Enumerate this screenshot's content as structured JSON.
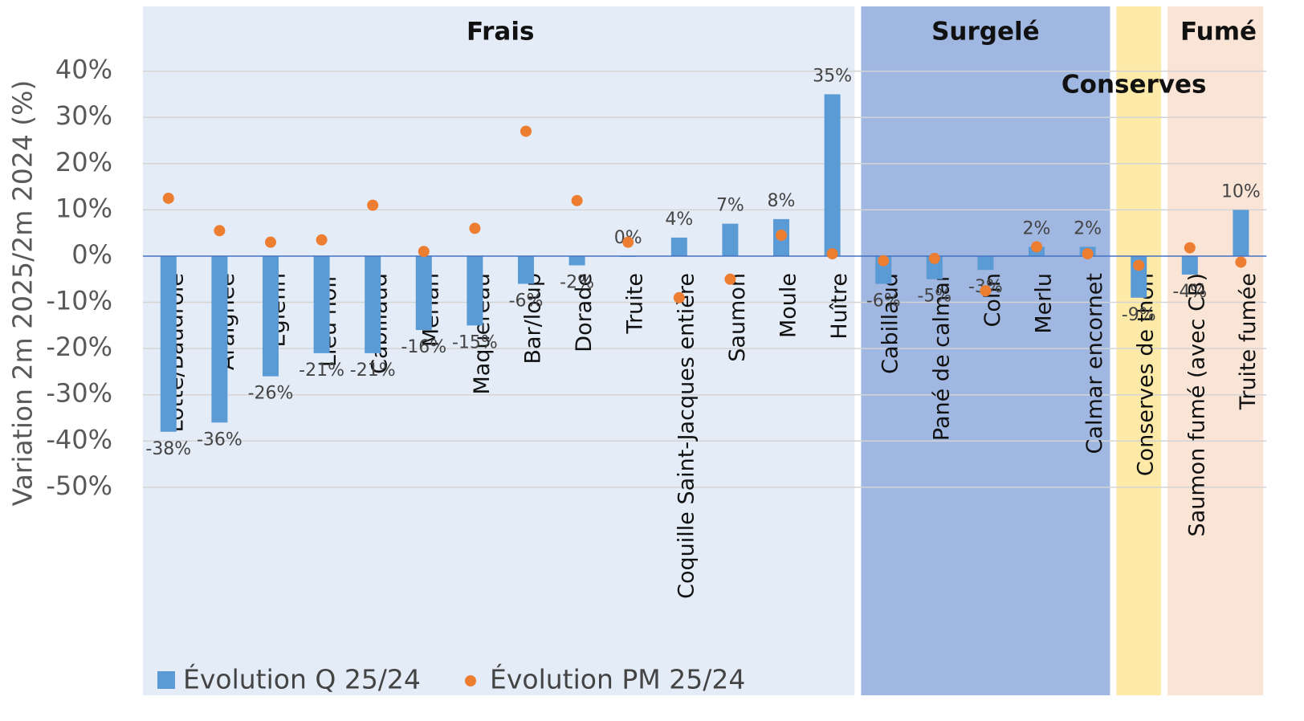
{
  "chart_data": {
    "type": "bar",
    "y_label": "Variation 2m 2025/2m 2024 (%)",
    "categories": [
      "Lotte/Baudroie",
      "Araignée",
      "Églefin",
      "Lieu noir",
      "Cabillaud",
      "Merlan",
      "Maquereau",
      "Bar/loup",
      "Dorade",
      "Truite",
      "Coquille Saint-Jacques entière",
      "Saumon",
      "Moule",
      "Huître",
      "Cabillaud",
      "Pané de calmar",
      "Colin",
      "Merlu",
      "Calmar encornet",
      "Conserves de thon",
      "Saumon fumé (avec CB)",
      "Truite fumée"
    ],
    "groups": [
      {
        "name": "Frais",
        "start": 0,
        "end": 13,
        "color": "#e3ecf7"
      },
      {
        "name": "Surgelé",
        "start": 14,
        "end": 18,
        "color": "#a0b7e1"
      },
      {
        "name": "Conserves",
        "start": 19,
        "end": 19,
        "color": "#fdeaa8"
      },
      {
        "name": "Fumé",
        "start": 20,
        "end": 21,
        "color": "#f9e4d6"
      }
    ],
    "series": [
      {
        "name": "Évolution Q 25/24",
        "color": "#5b9bd5",
        "kind": "bar",
        "values": [
          -38,
          -36,
          -26,
          -21,
          -21,
          -16,
          -15,
          -6,
          -2,
          0,
          4,
          7,
          8,
          35,
          -6,
          -5,
          -3,
          2,
          2,
          -9,
          -4,
          10
        ],
        "value_labels": [
          "-38%",
          "-36%",
          "-26%",
          "-21%",
          "-21%",
          "-16%",
          "-15%",
          "-6%",
          "-2%",
          "0%",
          "4%",
          "7%",
          "8%",
          "35%",
          "-6%",
          "-5%",
          "-3%",
          "2%",
          "2%",
          "-9%",
          "-4%",
          "10%"
        ]
      },
      {
        "name": "Évolution PM 25/24",
        "color": "#ed7d31",
        "kind": "dot",
        "values": [
          12.5,
          5.5,
          3,
          3.5,
          11,
          1,
          6,
          27,
          12,
          3,
          -9,
          -5,
          4.5,
          0.5,
          -1,
          -0.5,
          -7.5,
          2,
          0.5,
          -2,
          1.8,
          -1.3
        ]
      }
    ],
    "ylim": [
      -95,
      54
    ],
    "yticks": [
      {
        "value": 40,
        "label": "40%"
      },
      {
        "value": 30,
        "label": "30%"
      },
      {
        "value": 20,
        "label": "20%"
      },
      {
        "value": 10,
        "label": "10%"
      },
      {
        "value": 0,
        "label": "0%"
      },
      {
        "value": -10,
        "label": "-10%"
      },
      {
        "value": -20,
        "label": "-20%"
      },
      {
        "value": -30,
        "label": "-30%"
      },
      {
        "value": -40,
        "label": "-40%"
      },
      {
        "value": -50,
        "label": "-50%"
      }
    ],
    "grid": true
  }
}
